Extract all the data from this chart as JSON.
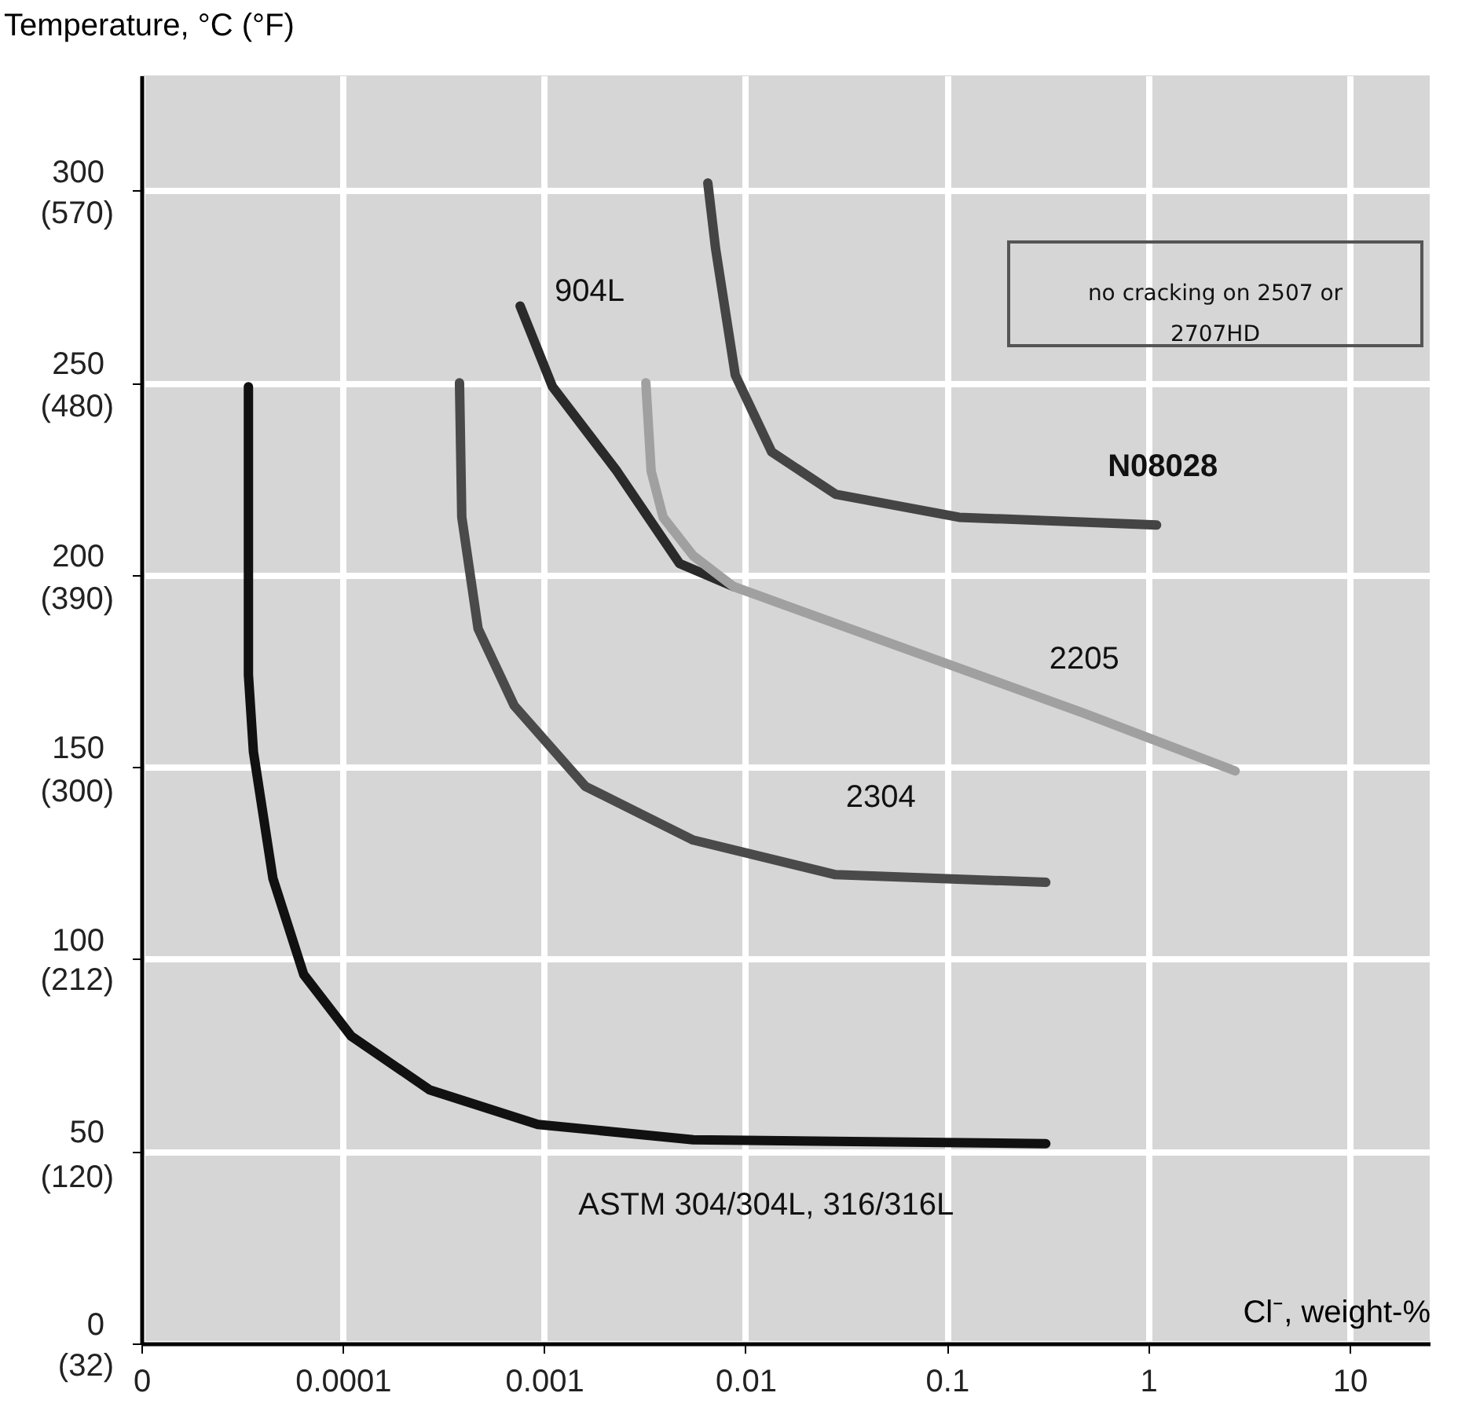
{
  "chart_data": {
    "type": "line",
    "xlabel": "Cl⁻, weight-%",
    "ylabel": "Temperature, °C (°F)",
    "log": "x",
    "grid": true,
    "marker": "none",
    "line_style": "solid",
    "xlim": [
      1e-05,
      25
    ],
    "ylim": [
      0,
      330
    ],
    "xticks": [
      {
        "value": 1e-05,
        "label": "0"
      },
      0.0001,
      0.001,
      0.01,
      0.1,
      1,
      10
    ],
    "yticks": [
      0,
      50,
      100,
      150,
      200,
      250,
      300
    ],
    "y2lim": [
      32,
      624
    ],
    "y2ticks": [
      {
        "value": 32,
        "label": "(32)"
      },
      {
        "value": 120,
        "label": "(120)"
      },
      {
        "value": 212,
        "label": "(212)"
      },
      {
        "value": 300,
        "label": "(300)"
      },
      {
        "value": 390,
        "label": "(390)"
      },
      {
        "value": 480,
        "label": "(480)"
      },
      {
        "value": 570,
        "label": "(570)"
      }
    ],
    "series": [
      {
        "name": "ASTM 304/304L, 316/316L",
        "color": "#111111",
        "x": [
          3.4e-05,
          3.4e-05,
          3.6e-05,
          4.5e-05,
          6.4e-05,
          0.00011,
          0.00027,
          0.00093,
          0.0055,
          0.31
        ],
        "values": [
          249,
          174,
          154,
          121,
          96,
          80,
          66,
          57,
          53,
          52
        ]
      },
      {
        "name": "2304",
        "color": "#4a4a4a",
        "x": [
          0.00038,
          0.00039,
          0.00047,
          0.00071,
          0.0016,
          0.0055,
          0.028,
          0.31
        ],
        "values": [
          250,
          215,
          186,
          166,
          145,
          131,
          122,
          120
        ]
      },
      {
        "name": "904L",
        "color": "#2a2a2a",
        "x": [
          0.00076,
          0.0011,
          0.0023,
          0.0047,
          0.0087
        ],
        "values": [
          270,
          249,
          227,
          203,
          197
        ]
      },
      {
        "name": "2205",
        "color": "#a0a0a0",
        "x": [
          0.0032,
          0.0034,
          0.0039,
          0.0055,
          0.0087,
          0.48,
          2.7
        ],
        "values": [
          250,
          227,
          215,
          205,
          197,
          164,
          149
        ]
      },
      {
        "name": "N08028",
        "color": "#444444",
        "x": [
          0.0065,
          0.0071,
          0.0089,
          0.0135,
          0.028,
          0.115,
          1.1
        ],
        "values": [
          302,
          285,
          252,
          232,
          221,
          215,
          213
        ]
      }
    ],
    "annotations": [
      "no cracking on 2507 or 2707HD"
    ]
  }
}
